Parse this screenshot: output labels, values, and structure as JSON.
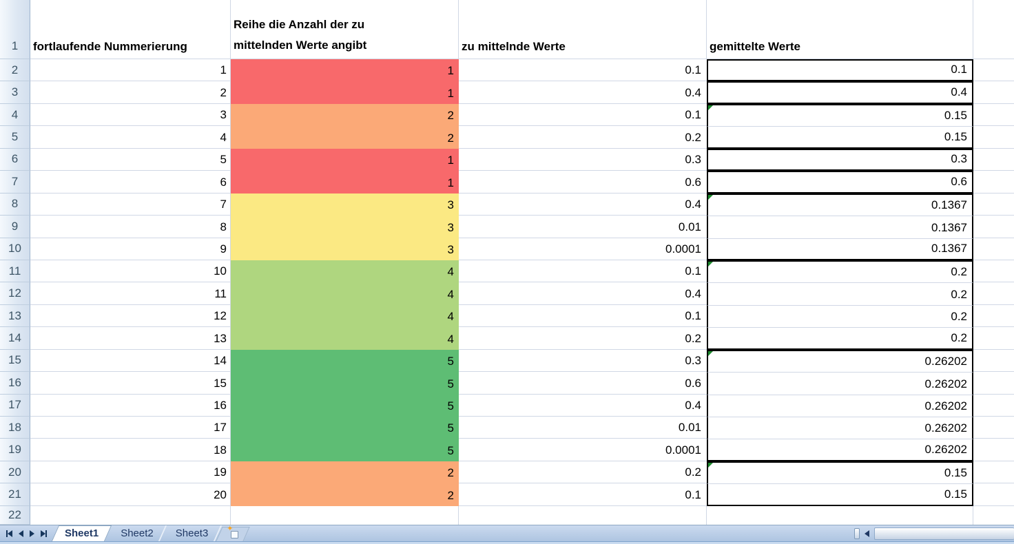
{
  "headers": {
    "row1_label": "1",
    "row22_label": "22",
    "col_a": "fortlaufende Nummerierung",
    "col_b_line1": "Reihe die Anzahl der zu",
    "col_b_line2": "mittelnden Werte angibt",
    "col_c": "zu mittelnde Werte",
    "col_d": "gemittelte Werte"
  },
  "color_scale": {
    "1": "#F8696B",
    "2": "#FBA977",
    "3": "#FBE983",
    "4": "#AFD67F",
    "5": "#5EBD74"
  },
  "accents": {
    "group_border": "#000000",
    "error_flag_green": "#1E8A2E",
    "gridline": "#D0D7E5",
    "tab_text": "#1F3864"
  },
  "rows": [
    {
      "n": "2",
      "a": "1",
      "b": "1",
      "c": "0.1",
      "d": "0.1",
      "start": true,
      "end": true,
      "flag": false
    },
    {
      "n": "3",
      "a": "2",
      "b": "1",
      "c": "0.4",
      "d": "0.4",
      "start": true,
      "end": true,
      "flag": false
    },
    {
      "n": "4",
      "a": "3",
      "b": "2",
      "c": "0.1",
      "d": "0.15",
      "start": true,
      "end": false,
      "flag": true
    },
    {
      "n": "5",
      "a": "4",
      "b": "2",
      "c": "0.2",
      "d": "0.15",
      "start": false,
      "end": true,
      "flag": false
    },
    {
      "n": "6",
      "a": "5",
      "b": "1",
      "c": "0.3",
      "d": "0.3",
      "start": true,
      "end": true,
      "flag": false
    },
    {
      "n": "7",
      "a": "6",
      "b": "1",
      "c": "0.6",
      "d": "0.6",
      "start": true,
      "end": true,
      "flag": false
    },
    {
      "n": "8",
      "a": "7",
      "b": "3",
      "c": "0.4",
      "d": "0.1367",
      "start": true,
      "end": false,
      "flag": true
    },
    {
      "n": "9",
      "a": "8",
      "b": "3",
      "c": "0.01",
      "d": "0.1367",
      "start": false,
      "end": false,
      "flag": false
    },
    {
      "n": "10",
      "a": "9",
      "b": "3",
      "c": "0.0001",
      "d": "0.1367",
      "start": false,
      "end": true,
      "flag": false
    },
    {
      "n": "11",
      "a": "10",
      "b": "4",
      "c": "0.1",
      "d": "0.2",
      "start": true,
      "end": false,
      "flag": true
    },
    {
      "n": "12",
      "a": "11",
      "b": "4",
      "c": "0.4",
      "d": "0.2",
      "start": false,
      "end": false,
      "flag": false
    },
    {
      "n": "13",
      "a": "12",
      "b": "4",
      "c": "0.1",
      "d": "0.2",
      "start": false,
      "end": false,
      "flag": false
    },
    {
      "n": "14",
      "a": "13",
      "b": "4",
      "c": "0.2",
      "d": "0.2",
      "start": false,
      "end": true,
      "flag": false
    },
    {
      "n": "15",
      "a": "14",
      "b": "5",
      "c": "0.3",
      "d": "0.26202",
      "start": true,
      "end": false,
      "flag": true
    },
    {
      "n": "16",
      "a": "15",
      "b": "5",
      "c": "0.6",
      "d": "0.26202",
      "start": false,
      "end": false,
      "flag": false
    },
    {
      "n": "17",
      "a": "16",
      "b": "5",
      "c": "0.4",
      "d": "0.26202",
      "start": false,
      "end": false,
      "flag": false
    },
    {
      "n": "18",
      "a": "17",
      "b": "5",
      "c": "0.01",
      "d": "0.26202",
      "start": false,
      "end": false,
      "flag": false
    },
    {
      "n": "19",
      "a": "18",
      "b": "5",
      "c": "0.0001",
      "d": "0.26202",
      "start": false,
      "end": true,
      "flag": false
    },
    {
      "n": "20",
      "a": "19",
      "b": "2",
      "c": "0.2",
      "d": "0.15",
      "start": true,
      "end": false,
      "flag": true
    },
    {
      "n": "21",
      "a": "20",
      "b": "2",
      "c": "0.1",
      "d": "0.15",
      "start": false,
      "end": true,
      "flag": false
    }
  ],
  "sheet_tabs": {
    "active": "Sheet1",
    "tabs": [
      "Sheet1",
      "Sheet2",
      "Sheet3"
    ]
  },
  "icons": {
    "insert_sheet_star": "✦"
  }
}
